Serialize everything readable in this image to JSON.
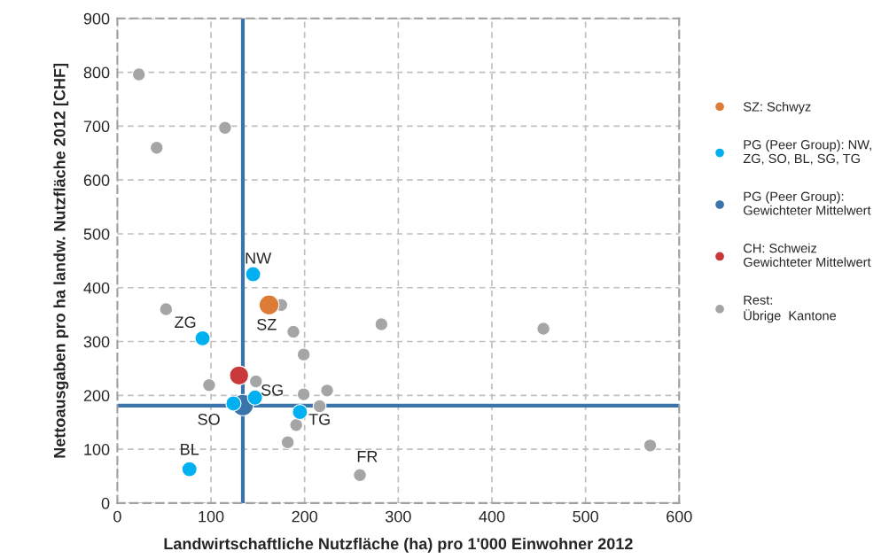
{
  "chart_data": {
    "type": "scatter",
    "xlabel": "Landwirtschaftliche Nutzfläche (ha) pro 1'000 Einwohner 2012",
    "ylabel": "Nettoausgaben pro ha landw. Nutzfläche 2012 [CHF]",
    "xlim": [
      0,
      600
    ],
    "xticks": [
      0,
      100,
      200,
      300,
      400,
      500,
      600
    ],
    "ylim": [
      0,
      900
    ],
    "yticks": [
      0,
      100,
      200,
      300,
      400,
      500,
      600,
      700,
      800,
      900
    ],
    "grid": true,
    "legend": "right",
    "marker": "circle",
    "series": [
      {
        "name": "SZ: Schwyz",
        "color": "#dd7c37",
        "x": [
          162
        ],
        "values": [
          368
        ]
      },
      {
        "name": "PG (Peer Group): NW,\nZG, SO, BL, SG, TG",
        "color": "#00b0f0",
        "x": [
          145,
          91,
          124,
          77,
          147,
          195
        ],
        "values": [
          425,
          306,
          185,
          63,
          196,
          169
        ]
      },
      {
        "name": "PG (Peer Group):\nGewichteter Mittelwert",
        "color": "#3a74aa",
        "x": [
          134
        ],
        "values": [
          182
        ]
      },
      {
        "name": "CH: Schweiz\nGewichteter Mittelwert",
        "color": "#c9383a",
        "x": [
          130
        ],
        "values": [
          237
        ]
      },
      {
        "name": "Rest:\nÜbrige  Kantone",
        "color": "#a5a5a5",
        "x": [
          23,
          42,
          115,
          52,
          98,
          175,
          188,
          199,
          148,
          199,
          224,
          216,
          191,
          182,
          259,
          282,
          455,
          569
        ],
        "values": [
          796,
          660,
          697,
          360,
          219,
          368,
          318,
          276,
          226,
          202,
          209,
          180,
          145,
          113,
          52,
          332,
          324,
          107
        ]
      }
    ],
    "ref_lines": [
      {
        "axis": "x",
        "value": 134,
        "color": "#3a74aa"
      },
      {
        "axis": "y",
        "value": 181,
        "color": "#3a74aa"
      }
    ],
    "annotations": [
      {
        "text": "NW",
        "x": 145,
        "y": 425
      },
      {
        "text": "ZG",
        "x": 91,
        "y": 306
      },
      {
        "text": "SO",
        "x": 124,
        "y": 185
      },
      {
        "text": "BL",
        "x": 77,
        "y": 63
      },
      {
        "text": "SG",
        "x": 147,
        "y": 196
      },
      {
        "text": "TG",
        "x": 195,
        "y": 169
      },
      {
        "text": "SZ",
        "x": 162,
        "y": 368
      },
      {
        "text": "FR",
        "x": 259,
        "y": 52
      }
    ]
  }
}
